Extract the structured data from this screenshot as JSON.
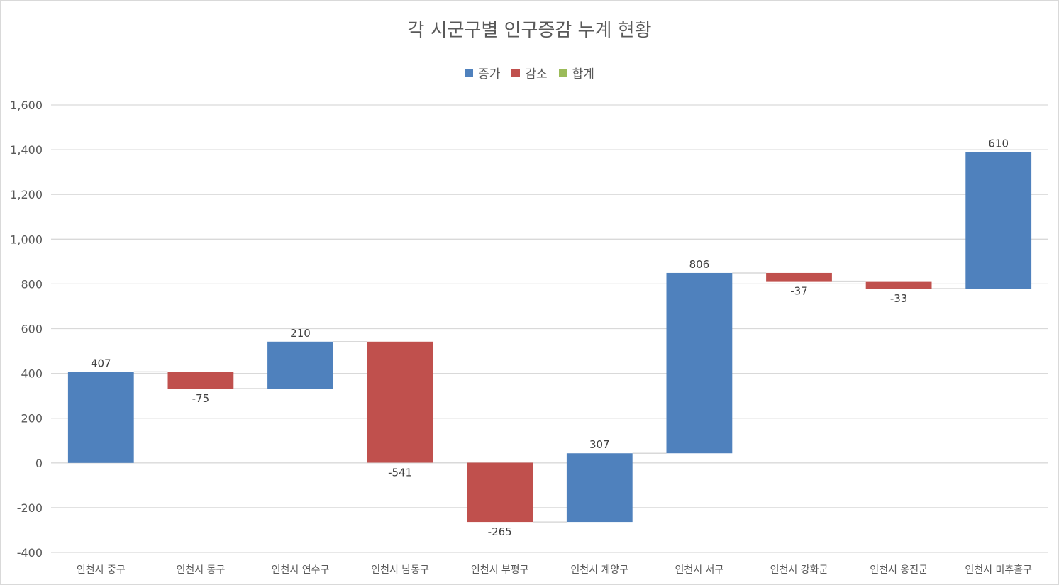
{
  "chart_data": {
    "type": "waterfall",
    "title": "각 시군구별 인구증감 누계 현황",
    "xlabel": "",
    "ylabel": "",
    "ylim": [
      -400,
      1600
    ],
    "ytick_step": 200,
    "grid": true,
    "legend_position": "top",
    "legend": [
      {
        "name": "증가",
        "color": "#4f81bd"
      },
      {
        "name": "감소",
        "color": "#c0504d"
      },
      {
        "name": "합계",
        "color": "#9bbb59"
      }
    ],
    "categories": [
      "인천시 중구",
      "인천시 동구",
      "인천시 연수구",
      "인천시 남동구",
      "인천시 부평구",
      "인천시 계양구",
      "인천시 서구",
      "인천시 강화군",
      "인천시 옹진군",
      "인천시 미추홀구"
    ],
    "values": [
      407,
      -75,
      210,
      -541,
      -265,
      307,
      806,
      -37,
      -33,
      610
    ],
    "data_labels": [
      "407",
      "-75",
      "210",
      "-541",
      "-265",
      "307",
      "806",
      "-37",
      "-33",
      "610"
    ],
    "y_tick_labels": [
      "-400",
      "-200",
      "0",
      "200",
      "400",
      "600",
      "800",
      "1,000",
      "1,200",
      "1,400",
      "1,600"
    ]
  }
}
